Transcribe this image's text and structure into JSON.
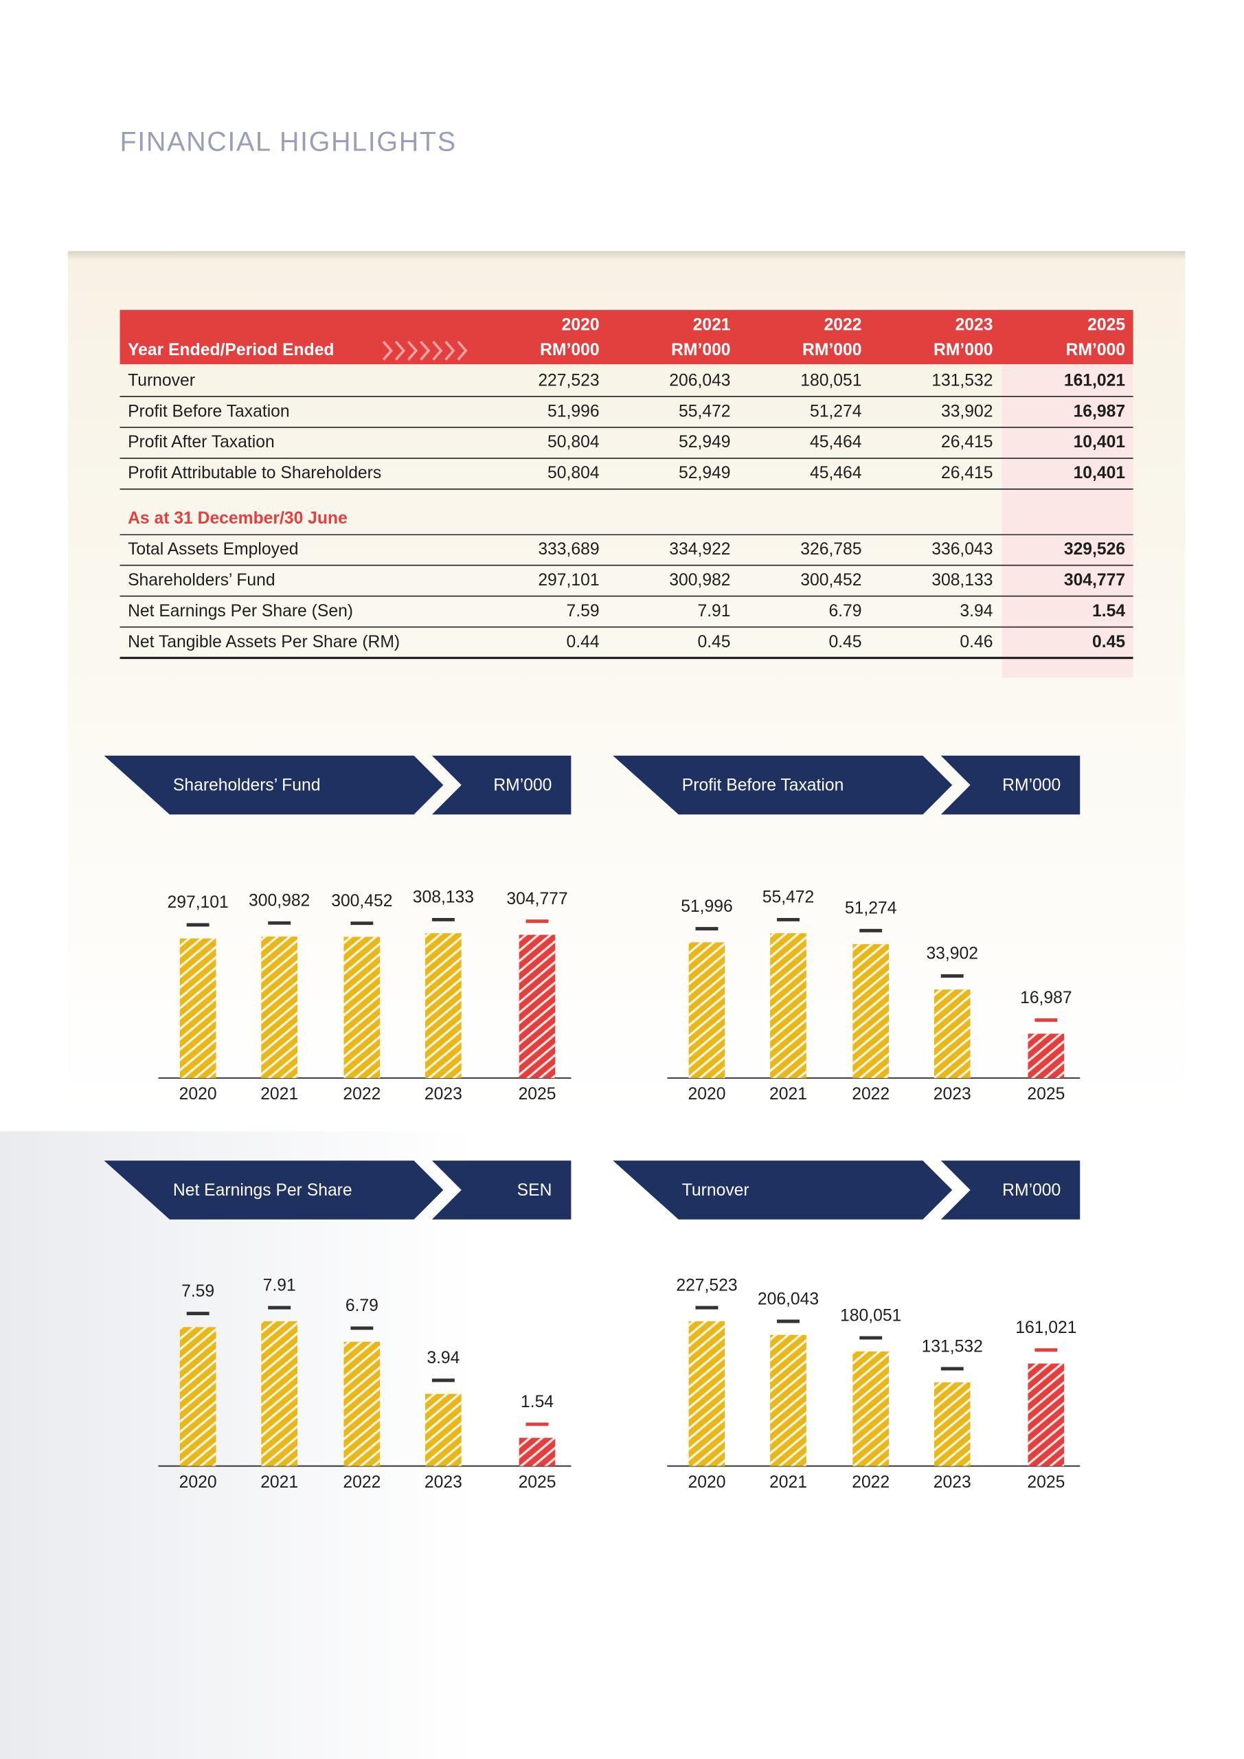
{
  "title": "FINANCIAL HIGHLIGHTS",
  "table": {
    "header_label": "Year Ended/Period Ended",
    "columns": [
      {
        "year": "2020",
        "unit": "RM’000"
      },
      {
        "year": "2021",
        "unit": "RM’000"
      },
      {
        "year": "2022",
        "unit": "RM’000"
      },
      {
        "year": "2023",
        "unit": "RM’000"
      },
      {
        "year": "2025",
        "unit": "RM’000"
      }
    ],
    "groups": [
      {
        "rows": [
          {
            "label": "Turnover",
            "values": [
              "227,523",
              "206,043",
              "180,051",
              "131,532",
              "161,021"
            ]
          },
          {
            "label": "Profit Before Taxation",
            "values": [
              "51,996",
              "55,472",
              "51,274",
              "33,902",
              "16,987"
            ]
          },
          {
            "label": "Profit After Taxation",
            "values": [
              "50,804",
              "52,949",
              "45,464",
              "26,415",
              "10,401"
            ]
          },
          {
            "label": "Profit Attributable to Shareholders",
            "values": [
              "50,804",
              "52,949",
              "45,464",
              "26,415",
              "10,401"
            ]
          }
        ]
      },
      {
        "heading": "As at 31 December/30 June",
        "rows": [
          {
            "label": "Total Assets Employed",
            "values": [
              "333,689",
              "334,922",
              "326,785",
              "336,043",
              "329,526"
            ]
          },
          {
            "label": "Shareholders’ Fund",
            "values": [
              "297,101",
              "300,982",
              "300,452",
              "308,133",
              "304,777"
            ]
          },
          {
            "label": "Net Earnings Per Share (Sen)",
            "values": [
              "7.59",
              "7.91",
              "6.79",
              "3.94",
              "1.54"
            ]
          },
          {
            "label": "Net Tangible Assets Per Share (RM)",
            "values": [
              "0.44",
              "0.45",
              "0.45",
              "0.46",
              "0.45"
            ]
          }
        ]
      }
    ]
  },
  "chart_data": [
    {
      "type": "bar",
      "title": "Shareholders’ Fund",
      "unit": "RM’000",
      "categories": [
        "2020",
        "2021",
        "2022",
        "2023",
        "2025"
      ],
      "values": [
        297101,
        300982,
        300452,
        308133,
        304777
      ],
      "value_labels": [
        "297,101",
        "300,982",
        "300,452",
        "308,133",
        "304,777"
      ],
      "colors": [
        "#e8b71a",
        "#e8b71a",
        "#e8b71a",
        "#e8b71a",
        "#e2403f"
      ]
    },
    {
      "type": "bar",
      "title": "Profit Before Taxation",
      "unit": "RM’000",
      "categories": [
        "2020",
        "2021",
        "2022",
        "2023",
        "2025"
      ],
      "values": [
        51996,
        55472,
        51274,
        33902,
        16987
      ],
      "value_labels": [
        "51,996",
        "55,472",
        "51,274",
        "33,902",
        "16,987"
      ],
      "colors": [
        "#e8b71a",
        "#e8b71a",
        "#e8b71a",
        "#e8b71a",
        "#e2403f"
      ]
    },
    {
      "type": "bar",
      "title": "Net Earnings Per Share",
      "unit": "SEN",
      "categories": [
        "2020",
        "2021",
        "2022",
        "2023",
        "2025"
      ],
      "values": [
        7.59,
        7.91,
        6.79,
        3.94,
        1.54
      ],
      "colors": [
        "#e8b71a",
        "#e8b71a",
        "#e8b71a",
        "#e8b71a",
        "#e2403f"
      ]
    },
    {
      "type": "bar",
      "title": "Turnover",
      "unit": "RM’000",
      "categories": [
        "2020",
        "2021",
        "2022",
        "2023",
        "2025"
      ],
      "values": [
        227523,
        206043,
        180051,
        131532,
        161021
      ],
      "value_labels": [
        "227,523",
        "206,043",
        "180,051",
        "131,532",
        "161,021"
      ],
      "colors": [
        "#e8b71a",
        "#e8b71a",
        "#e8b71a",
        "#e8b71a",
        "#e2403f"
      ]
    }
  ]
}
